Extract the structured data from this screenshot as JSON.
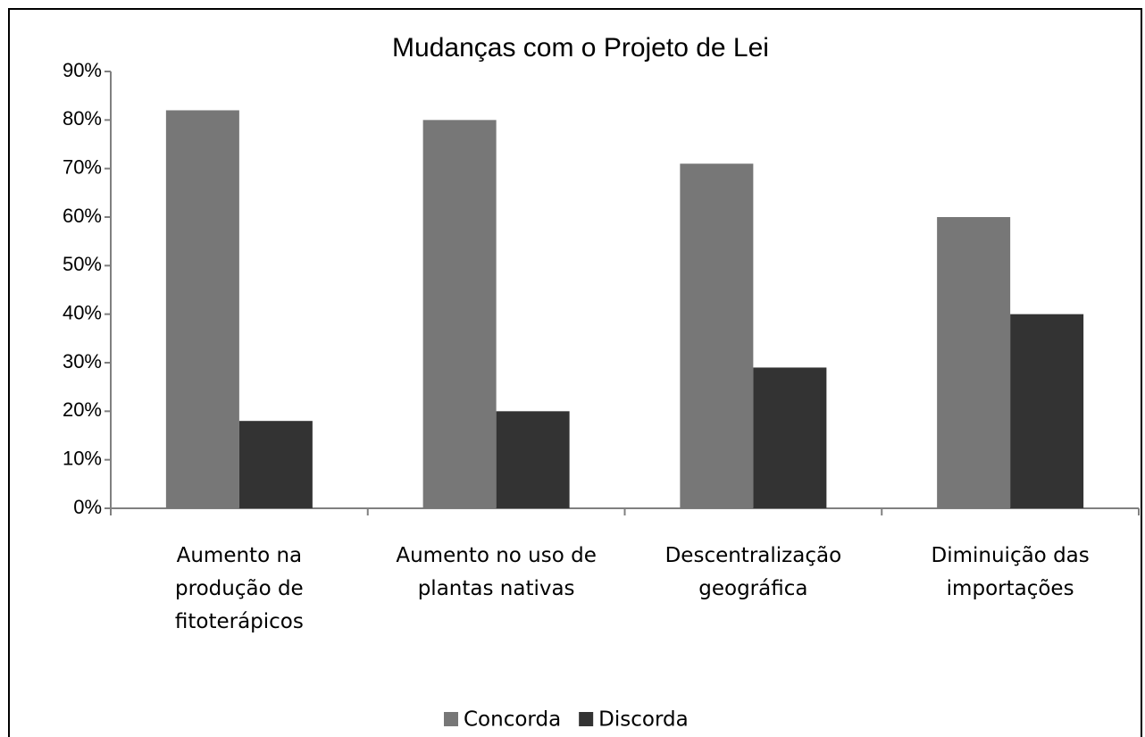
{
  "chart_data": {
    "type": "bar",
    "title": "Mudanças com o Projeto de Lei",
    "categories": [
      "Aumento na\nprodução de\nfitoterápicos",
      "Aumento no uso de\nplantas nativas",
      "Descentralização\ngeográfica",
      "Diminuição das\nimportações"
    ],
    "series": [
      {
        "name": "Concorda",
        "color": "#777777",
        "values": [
          82,
          80,
          71,
          60
        ]
      },
      {
        "name": "Discorda",
        "color": "#333333",
        "values": [
          18,
          20,
          29,
          40
        ]
      }
    ],
    "ylim": [
      0,
      90
    ],
    "yticks": [
      {
        "value": 0,
        "label": "0%"
      },
      {
        "value": 10,
        "label": "10%"
      },
      {
        "value": 20,
        "label": "20%"
      },
      {
        "value": 30,
        "label": "30%"
      },
      {
        "value": 40,
        "label": "40%"
      },
      {
        "value": 50,
        "label": "50%"
      },
      {
        "value": 60,
        "label": "60%"
      },
      {
        "value": 70,
        "label": "70%"
      },
      {
        "value": 80,
        "label": "80%"
      },
      {
        "value": 90,
        "label": "90%"
      }
    ],
    "legend": "bottom"
  }
}
